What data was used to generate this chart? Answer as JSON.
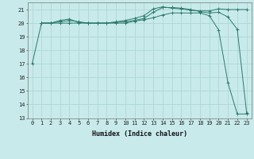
{
  "xlabel": "Humidex (Indice chaleur)",
  "bg_color": "#c8eaea",
  "line_color": "#2d7a6b",
  "grid_color": "#aed8d8",
  "xlim": [
    -0.5,
    23.5
  ],
  "ylim": [
    13,
    21.5
  ],
  "yticks": [
    13,
    14,
    15,
    16,
    17,
    18,
    19,
    20,
    21
  ],
  "xticks": [
    0,
    1,
    2,
    3,
    4,
    5,
    6,
    7,
    8,
    9,
    10,
    11,
    12,
    13,
    14,
    15,
    16,
    17,
    18,
    19,
    20,
    21,
    22,
    23
  ],
  "line1_x": [
    0,
    1,
    2,
    3,
    4,
    5,
    6,
    7,
    8,
    9,
    10,
    11,
    12,
    13,
    14,
    15,
    16,
    17,
    18,
    19,
    20,
    21,
    22,
    23
  ],
  "line1_y": [
    17.0,
    20.0,
    20.0,
    20.0,
    20.0,
    20.0,
    20.0,
    20.0,
    20.0,
    20.0,
    20.0,
    20.15,
    20.25,
    20.4,
    20.6,
    20.75,
    20.75,
    20.75,
    20.75,
    20.55,
    19.5,
    15.6,
    13.3,
    13.3
  ],
  "line2_x": [
    1,
    2,
    3,
    4,
    5,
    6,
    7,
    8,
    9,
    10,
    11,
    12,
    13,
    14,
    15,
    16,
    17,
    18,
    19,
    20,
    21,
    22,
    23
  ],
  "line2_y": [
    20.0,
    20.0,
    20.1,
    20.2,
    20.1,
    20.0,
    20.0,
    20.0,
    20.05,
    20.1,
    20.2,
    20.35,
    20.8,
    21.15,
    21.15,
    21.1,
    21.0,
    20.85,
    20.75,
    20.8,
    20.45,
    19.55,
    13.4
  ],
  "line3_x": [
    1,
    2,
    3,
    4,
    5,
    6,
    7,
    8,
    9,
    10,
    11,
    12,
    13,
    14,
    15,
    16,
    17,
    18,
    19,
    20,
    21,
    22,
    23
  ],
  "line3_y": [
    20.0,
    20.0,
    20.2,
    20.3,
    20.05,
    20.0,
    20.0,
    20.0,
    20.1,
    20.2,
    20.35,
    20.55,
    21.05,
    21.2,
    21.1,
    21.05,
    20.95,
    20.9,
    20.9,
    21.05,
    21.0,
    21.0,
    21.0
  ],
  "xlabel_fontsize": 6.0,
  "tick_fontsize": 5.0
}
